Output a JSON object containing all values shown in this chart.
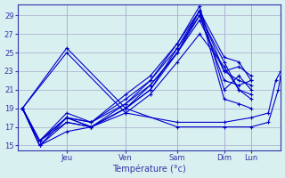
{
  "xlabel": "Température (°c)",
  "bg_color": "#d8f0f0",
  "grid_color": "#aaaacc",
  "line_color": "#0000cc",
  "yticks": [
    15,
    17,
    19,
    21,
    23,
    25,
    27,
    29
  ],
  "ylim": [
    14.5,
    30.2
  ],
  "xlim": [
    -0.02,
    1.05
  ],
  "day_positions": [
    0.18,
    0.42,
    0.63,
    0.82,
    0.93
  ],
  "day_labels": [
    "Jeu",
    "Ven",
    "Sam",
    "Dim",
    "Lun"
  ],
  "series": [
    {
      "x": [
        0.0,
        0.18,
        0.42,
        0.63,
        0.82,
        0.93,
        1.0,
        1.04,
        1.05
      ],
      "y": [
        19.0,
        25.5,
        19.0,
        17.0,
        17.0,
        17.0,
        17.5,
        21.0,
        22.5
      ]
    },
    {
      "x": [
        0.0,
        0.18,
        0.42,
        0.63,
        0.82,
        0.93,
        1.0,
        1.03,
        1.05
      ],
      "y": [
        19.0,
        25.0,
        18.5,
        17.5,
        17.5,
        18.0,
        18.5,
        22.0,
        23.0
      ]
    },
    {
      "x": [
        0.0,
        0.07,
        0.18,
        0.28,
        0.42,
        0.52,
        0.63,
        0.72,
        0.82,
        0.88,
        0.93
      ],
      "y": [
        19.0,
        15.5,
        18.0,
        17.0,
        19.0,
        21.5,
        25.0,
        29.5,
        20.0,
        19.5,
        19.0
      ]
    },
    {
      "x": [
        0.0,
        0.07,
        0.18,
        0.28,
        0.42,
        0.52,
        0.63,
        0.72,
        0.82,
        0.88,
        0.93
      ],
      "y": [
        19.0,
        15.5,
        18.5,
        17.5,
        19.5,
        22.0,
        26.0,
        30.0,
        21.0,
        22.5,
        21.0
      ]
    },
    {
      "x": [
        0.0,
        0.07,
        0.18,
        0.28,
        0.42,
        0.52,
        0.63,
        0.72,
        0.82,
        0.88,
        0.93
      ],
      "y": [
        19.0,
        15.0,
        18.0,
        17.0,
        19.0,
        21.0,
        25.5,
        29.5,
        23.0,
        23.5,
        22.5
      ]
    },
    {
      "x": [
        0.0,
        0.07,
        0.18,
        0.28,
        0.42,
        0.52,
        0.63,
        0.72,
        0.82,
        0.88,
        0.93
      ],
      "y": [
        19.0,
        15.5,
        17.5,
        17.0,
        19.5,
        21.5,
        25.0,
        29.0,
        24.0,
        21.0,
        20.5
      ]
    },
    {
      "x": [
        0.0,
        0.07,
        0.18,
        0.28,
        0.42,
        0.52,
        0.63,
        0.72,
        0.82,
        0.88,
        0.93
      ],
      "y": [
        19.0,
        15.5,
        18.0,
        17.5,
        20.0,
        22.0,
        25.5,
        29.0,
        22.0,
        21.5,
        22.0
      ]
    },
    {
      "x": [
        0.0,
        0.07,
        0.18,
        0.28,
        0.42,
        0.52,
        0.63,
        0.72,
        0.82,
        0.88,
        0.93
      ],
      "y": [
        19.0,
        15.0,
        17.5,
        17.0,
        19.0,
        21.0,
        25.0,
        28.5,
        23.0,
        22.0,
        21.5
      ]
    },
    {
      "x": [
        0.0,
        0.07,
        0.18,
        0.28,
        0.42,
        0.52,
        0.63,
        0.72,
        0.82,
        0.88,
        0.93
      ],
      "y": [
        19.0,
        15.5,
        18.0,
        17.5,
        20.5,
        22.5,
        26.0,
        29.5,
        24.5,
        24.0,
        22.0
      ]
    },
    {
      "x": [
        0.0,
        0.07,
        0.18,
        0.28,
        0.42,
        0.52,
        0.63,
        0.72,
        0.82,
        0.88,
        0.93
      ],
      "y": [
        19.0,
        15.0,
        16.5,
        17.0,
        18.5,
        20.5,
        24.0,
        27.0,
        23.5,
        21.0,
        20.0
      ]
    }
  ]
}
